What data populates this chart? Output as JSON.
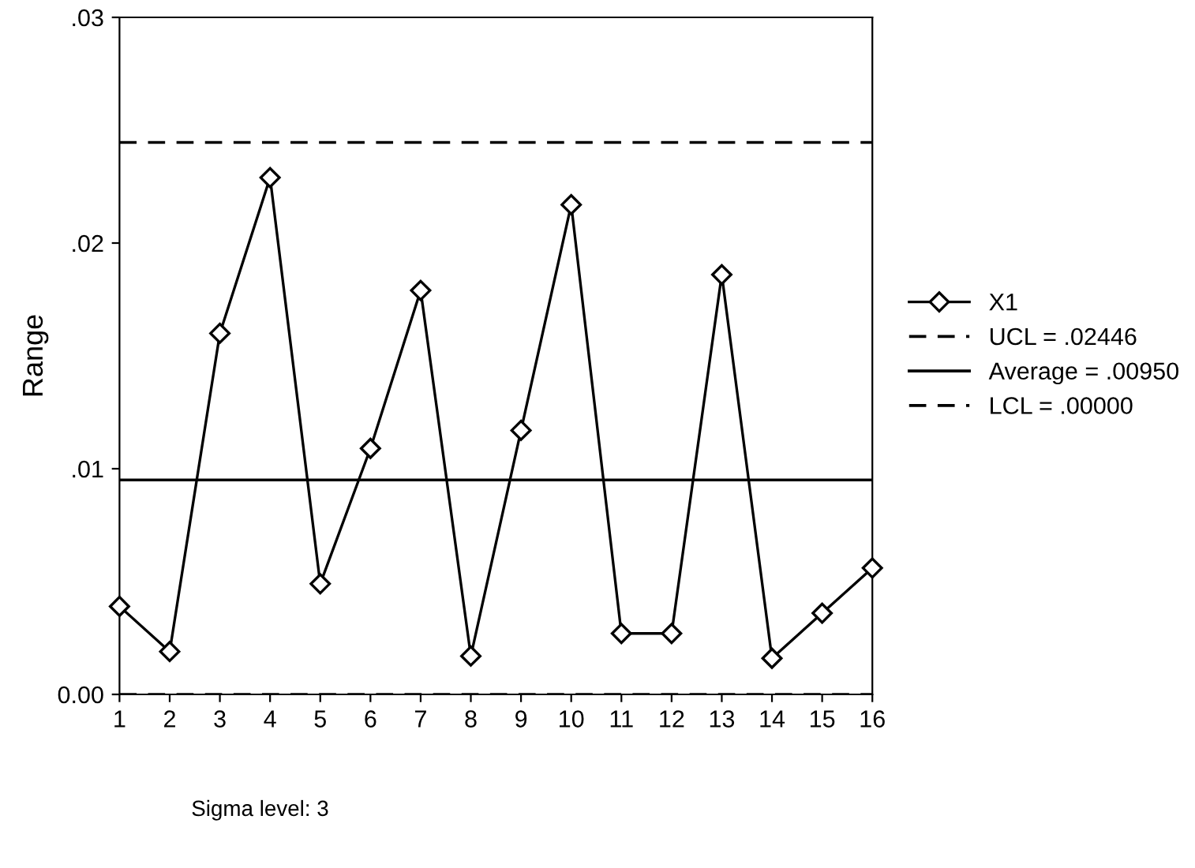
{
  "chart_data": {
    "type": "line",
    "ylabel": "Range",
    "x": [
      1,
      2,
      3,
      4,
      5,
      6,
      7,
      8,
      9,
      10,
      11,
      12,
      13,
      14,
      15,
      16
    ],
    "series": [
      {
        "name": "X1",
        "color": "#000000",
        "values": [
          0.0039,
          0.0019,
          0.016,
          0.0229,
          0.0049,
          0.0109,
          0.0179,
          0.0017,
          0.0117,
          0.0217,
          0.0027,
          0.0027,
          0.0186,
          0.0016,
          0.0036,
          0.0056
        ]
      }
    ],
    "xlim": [
      1,
      16
    ],
    "xticks": [
      1,
      2,
      3,
      4,
      5,
      6,
      7,
      8,
      9,
      10,
      11,
      12,
      13,
      14,
      15,
      16
    ],
    "ylim": [
      0,
      0.03
    ],
    "yticks": [
      {
        "value": 0,
        "label": "0.00"
      },
      {
        "value": 0.01,
        "label": ".01"
      },
      {
        "value": 0.02,
        "label": ".02"
      },
      {
        "value": 0.03,
        "label": ".03"
      }
    ],
    "ref_lines": [
      {
        "axis": "y",
        "value": 0.02446,
        "label": "UCL = .02446",
        "color": "#000000",
        "line_style": "dashed"
      },
      {
        "axis": "y",
        "value": 0.0095,
        "label": "Average = .00950",
        "color": "#000000",
        "line_style": "solid"
      },
      {
        "axis": "y",
        "value": 0,
        "label": "LCL = .00000",
        "color": "#000000",
        "line_style": "dashed"
      }
    ],
    "annotations": [
      "Sigma level: 3"
    ],
    "marker": "diamond",
    "line_style": "solid",
    "grid": false,
    "legend": "right"
  }
}
